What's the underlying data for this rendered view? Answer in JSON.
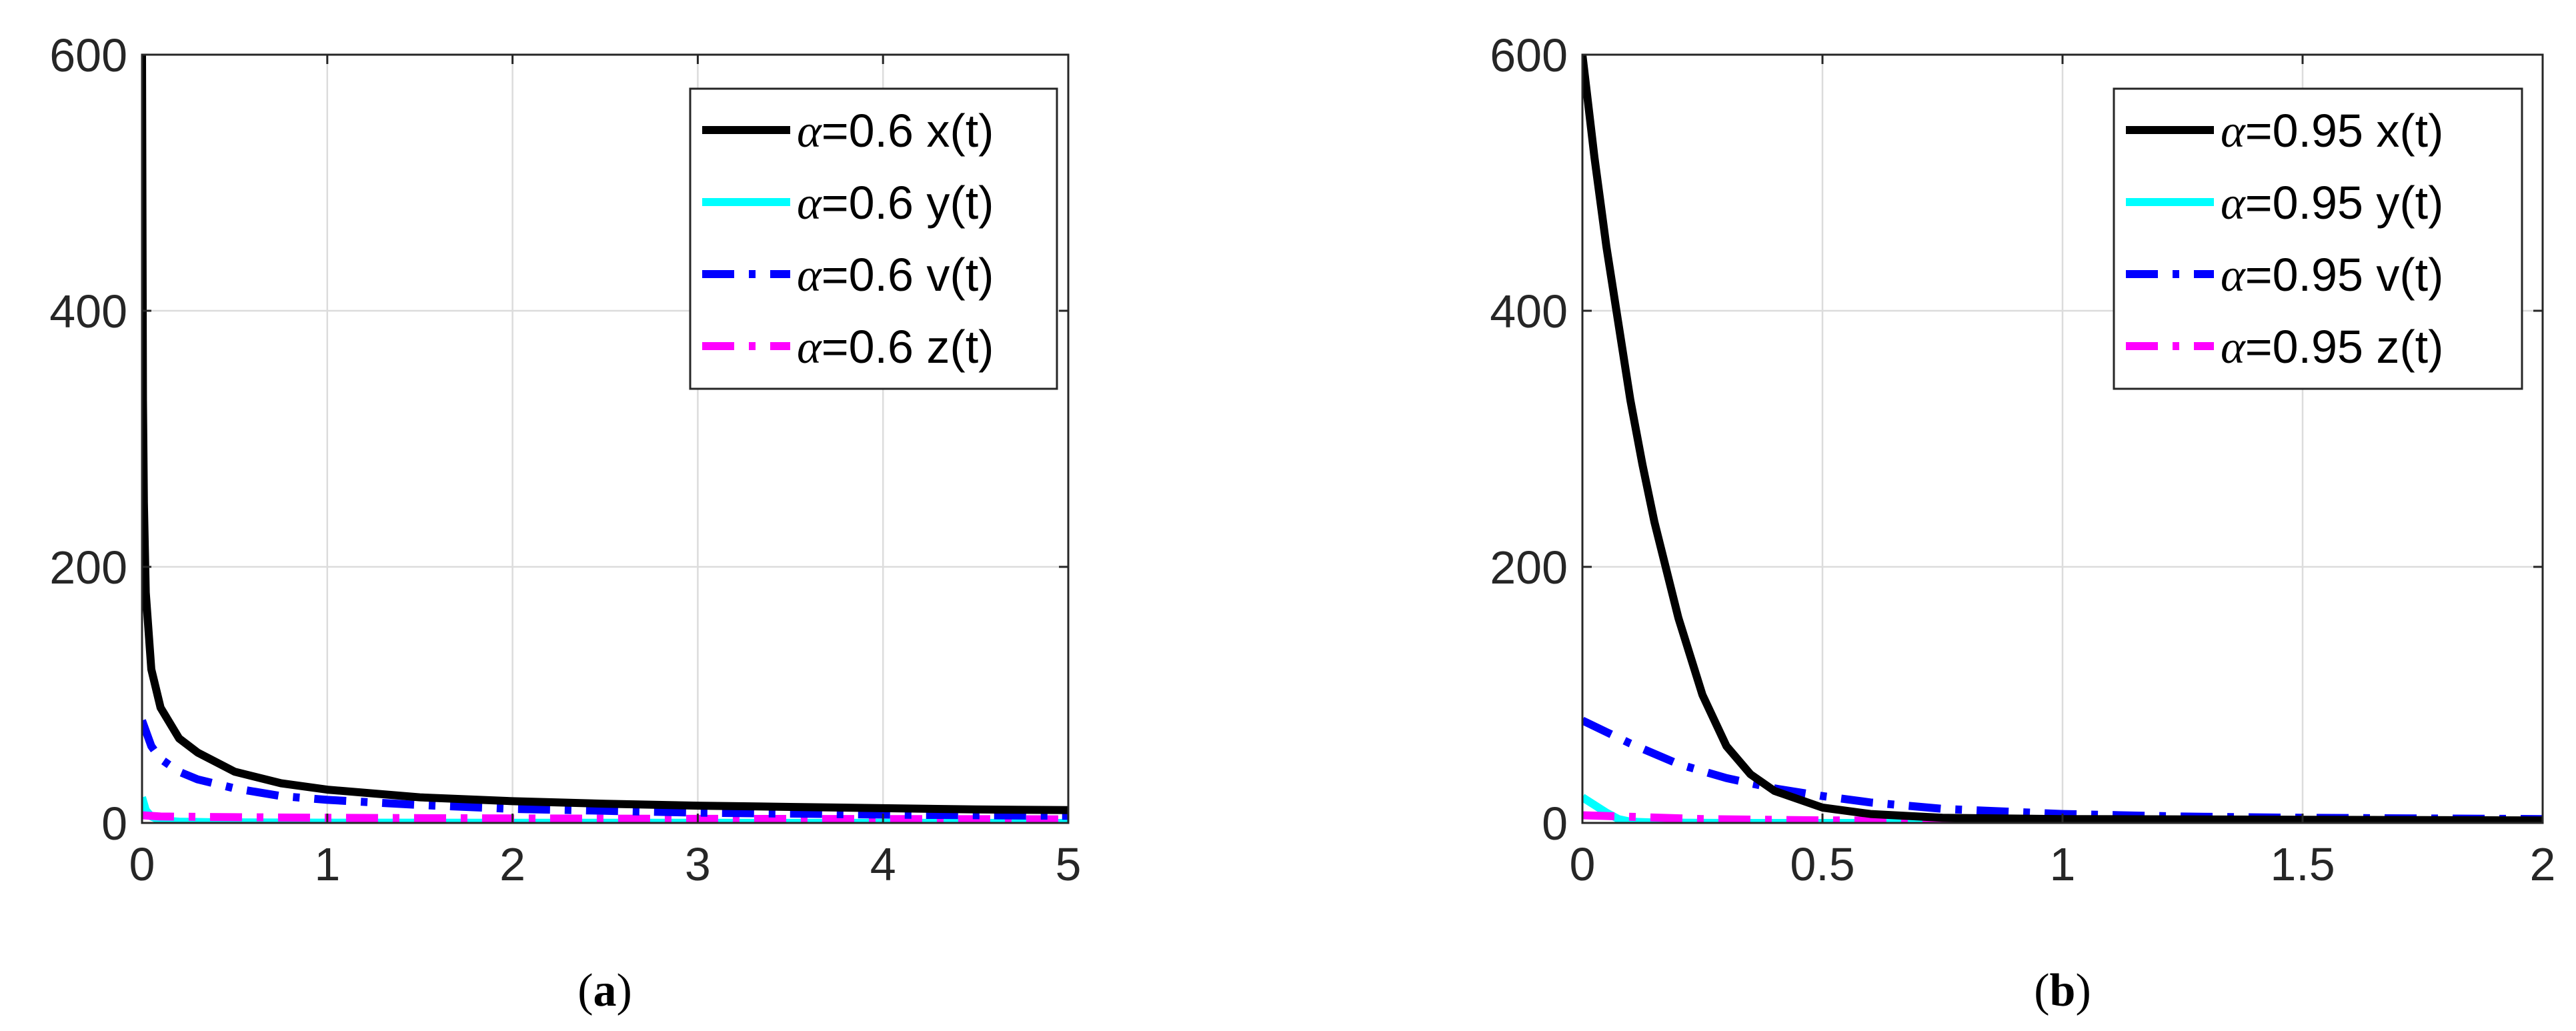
{
  "chart_data": [
    {
      "type": "line",
      "caption": "(a)",
      "caption_letter": "a",
      "xlim": [
        0,
        5
      ],
      "ylim": [
        0,
        600
      ],
      "xticks": [
        "0",
        "1",
        "2",
        "3",
        "4",
        "5"
      ],
      "yticks": [
        "0",
        "200",
        "400",
        "600"
      ],
      "grid": true,
      "legend_position": "top-right",
      "series": [
        {
          "name": "α=0.6 x(t)",
          "symbol": "α",
          "label": "=0.6 x(t)",
          "color": "#000000",
          "style": "solid",
          "x": [
            0,
            0.005,
            0.01,
            0.02,
            0.05,
            0.1,
            0.2,
            0.3,
            0.5,
            0.75,
            1,
            1.5,
            2,
            2.5,
            3,
            3.5,
            4,
            4.5,
            5
          ],
          "y": [
            600,
            330,
            250,
            180,
            120,
            90,
            66,
            55,
            40,
            31,
            26,
            20,
            17,
            15,
            13.5,
            12.5,
            11.5,
            10.5,
            10
          ]
        },
        {
          "name": "α=0.6 y(t)",
          "symbol": "α",
          "label": "=0.6 y(t)",
          "color": "#00ffff",
          "style": "solid",
          "x": [
            0,
            0.02,
            0.05,
            0.1,
            0.2,
            0.4,
            1,
            5
          ],
          "y": [
            20,
            10,
            5,
            2,
            1,
            0.5,
            0.2,
            0
          ]
        },
        {
          "name": "α=0.6 v(t)",
          "symbol": "α",
          "label": "=0.6 v(t)",
          "color": "#0000ff",
          "style": "dashdot",
          "x": [
            0,
            0.05,
            0.1,
            0.2,
            0.3,
            0.5,
            0.75,
            1,
            1.5,
            2,
            2.5,
            3,
            4,
            5
          ],
          "y": [
            80,
            60,
            50,
            40,
            34,
            27,
            21,
            18,
            14,
            11,
            9.5,
            8,
            6.5,
            5.5
          ]
        },
        {
          "name": "α=0.6 z(t)",
          "symbol": "α",
          "label": "=0.6 z(t)",
          "color": "#ff00ff",
          "style": "dashdot",
          "x": [
            0,
            0.1,
            0.5,
            1,
            2,
            3,
            4,
            5
          ],
          "y": [
            6,
            5,
            4.5,
            4,
            3.5,
            3.2,
            3,
            2.8
          ]
        }
      ]
    },
    {
      "type": "line",
      "caption": "(b)",
      "caption_letter": "b",
      "xlim": [
        0,
        2
      ],
      "ylim": [
        0,
        600
      ],
      "xticks": [
        "0",
        "0.5",
        "1",
        "1.5",
        "2"
      ],
      "yticks": [
        "0",
        "200",
        "400",
        "600"
      ],
      "grid": true,
      "legend_position": "top-right",
      "series": [
        {
          "name": "α=0.95 x(t)",
          "symbol": "α",
          "label": "=0.95 x(t)",
          "color": "#000000",
          "style": "solid",
          "x": [
            0,
            0.025,
            0.05,
            0.075,
            0.1,
            0.125,
            0.15,
            0.2,
            0.25,
            0.3,
            0.35,
            0.4,
            0.5,
            0.6,
            0.75,
            1,
            1.5,
            2
          ],
          "y": [
            600,
            520,
            450,
            390,
            330,
            280,
            235,
            160,
            100,
            60,
            38,
            25,
            12,
            7,
            4,
            3,
            2.5,
            2
          ]
        },
        {
          "name": "α=0.95 y(t)",
          "symbol": "α",
          "label": "=0.95 y(t)",
          "color": "#00ffff",
          "style": "solid",
          "x": [
            0,
            0.025,
            0.05,
            0.075,
            0.1,
            0.15,
            0.3,
            2
          ],
          "y": [
            20,
            14,
            8,
            3,
            1,
            0.3,
            0,
            0
          ]
        },
        {
          "name": "α=0.95 v(t)",
          "symbol": "α",
          "label": "=0.95 v(t)",
          "color": "#0000ff",
          "style": "dashdot",
          "x": [
            0,
            0.1,
            0.2,
            0.3,
            0.4,
            0.5,
            0.6,
            0.75,
            1,
            1.25,
            1.5,
            1.75,
            2
          ],
          "y": [
            80,
            62,
            46,
            35,
            27,
            21,
            16,
            11,
            7,
            5,
            4,
            3.5,
            3
          ]
        },
        {
          "name": "α=0.95 z(t)",
          "symbol": "α",
          "label": "=0.95 z(t)",
          "color": "#ff00ff",
          "style": "dashdot",
          "x": [
            0,
            0.25,
            0.5,
            1,
            1.5,
            2
          ],
          "y": [
            6,
            3,
            2,
            1.5,
            1.2,
            1
          ]
        }
      ]
    }
  ]
}
